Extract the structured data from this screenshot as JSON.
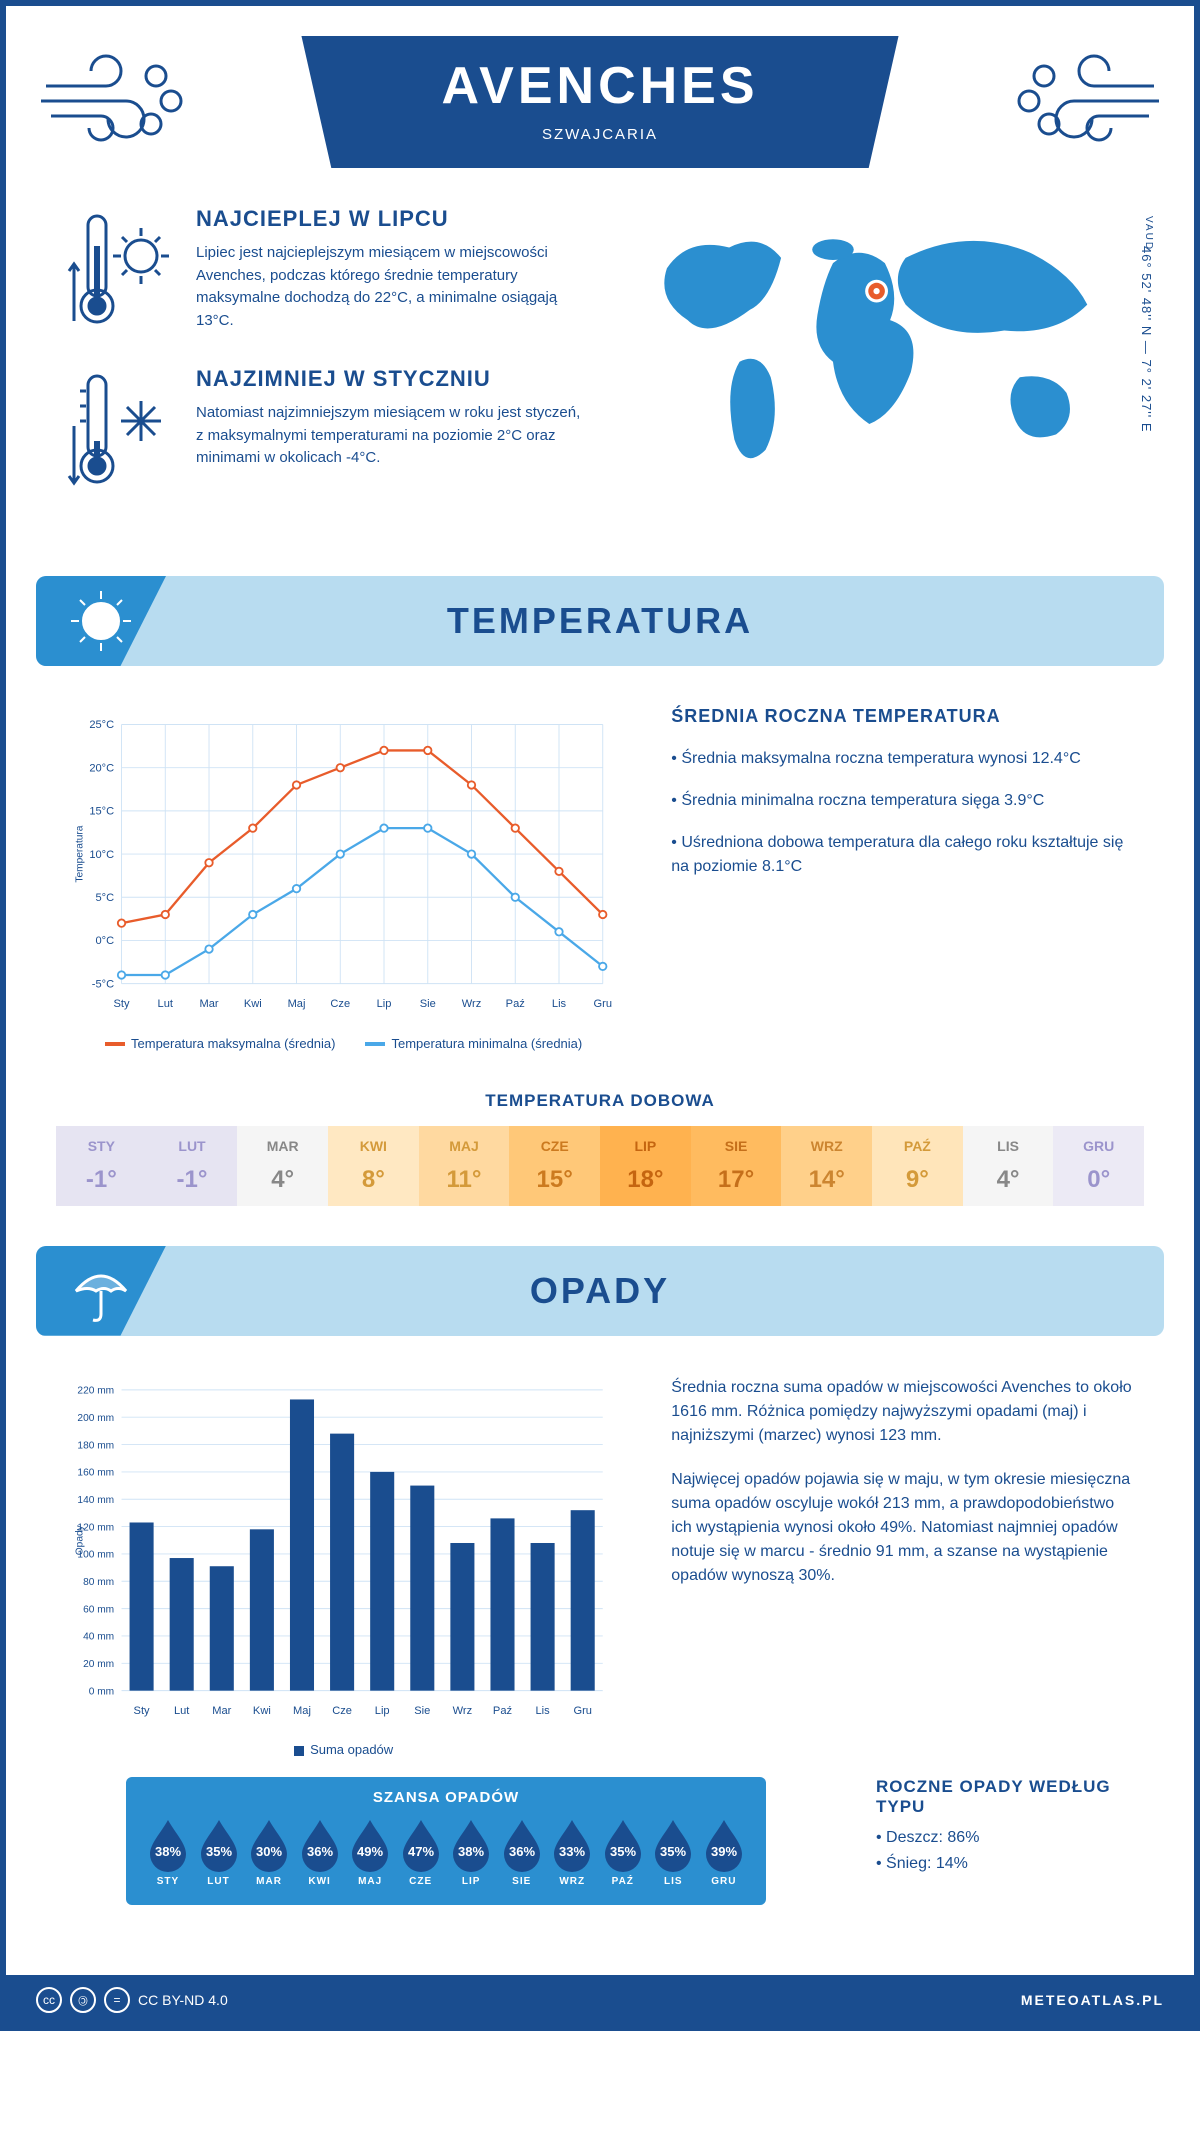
{
  "header": {
    "title": "AVENCHES",
    "subtitle": "SZWAJCARIA",
    "region": "VAUD",
    "coords": "46° 52' 48'' N — 7° 2' 27'' E"
  },
  "colors": {
    "primary": "#1a4d8f",
    "accent": "#2b8fd0",
    "light": "#b8dcf0",
    "max_line": "#e85c2b",
    "min_line": "#4aa8e8"
  },
  "warmest": {
    "title": "NAJCIEPLEJ W LIPCU",
    "text": "Lipiec jest najcieplejszym miesiącem w miejscowości Avenches, podczas którego średnie temperatury maksymalne dochodzą do 22°C, a minimalne osiągają 13°C."
  },
  "coldest": {
    "title": "NAJZIMNIEJ W STYCZNIU",
    "text": "Natomiast najzimniejszym miesiącem w roku jest styczeń, z maksymalnymi temperaturami na poziomie 2°C oraz minimami w okolicach -4°C."
  },
  "temp_section": {
    "title": "TEMPERATURA",
    "chart": {
      "type": "line",
      "months": [
        "Sty",
        "Lut",
        "Mar",
        "Kwi",
        "Maj",
        "Cze",
        "Lip",
        "Sie",
        "Wrz",
        "Paź",
        "Lis",
        "Gru"
      ],
      "max": [
        2,
        3,
        9,
        13,
        18,
        20,
        22,
        22,
        18,
        13,
        8,
        3
      ],
      "min": [
        -4,
        -4,
        -1,
        3,
        6,
        10,
        13,
        13,
        10,
        5,
        1,
        -3
      ],
      "ylim": [
        -5,
        25
      ],
      "ytick_step": 5,
      "yunit": "°C",
      "ylabel": "Temperatura",
      "max_color": "#e85c2b",
      "min_color": "#4aa8e8",
      "grid_color": "#cfe3f5",
      "legend_max": "Temperatura maksymalna (średnia)",
      "legend_min": "Temperatura minimalna (średnia)"
    },
    "side": {
      "title": "ŚREDNIA ROCZNA TEMPERATURA",
      "b1": "• Średnia maksymalna roczna temperatura wynosi 12.4°C",
      "b2": "• Średnia minimalna roczna temperatura sięga 3.9°C",
      "b3": "• Uśredniona dobowa temperatura dla całego roku kształtuje się na poziomie 8.1°C"
    },
    "daily": {
      "title": "TEMPERATURA DOBOWA",
      "months": [
        "STY",
        "LUT",
        "MAR",
        "KWI",
        "MAJ",
        "CZE",
        "LIP",
        "SIE",
        "WRZ",
        "PAŹ",
        "LIS",
        "GRU"
      ],
      "values": [
        "-1°",
        "-1°",
        "4°",
        "8°",
        "11°",
        "15°",
        "18°",
        "17°",
        "14°",
        "9°",
        "4°",
        "0°"
      ],
      "cell_colors": [
        "#e6e4f2",
        "#e6e4f2",
        "#f5f5f5",
        "#ffe8c2",
        "#ffd9a0",
        "#ffc878",
        "#ffb24f",
        "#ffbb5f",
        "#ffd08a",
        "#ffe5ba",
        "#f5f5f5",
        "#eceaf5"
      ],
      "text_colors": [
        "#9b94cc",
        "#9b94cc",
        "#888",
        "#d49a3a",
        "#d49a3a",
        "#cc7a1f",
        "#c56510",
        "#c56f1a",
        "#cc8530",
        "#d49a3a",
        "#888",
        "#9b94cc"
      ]
    }
  },
  "precip_section": {
    "title": "OPADY",
    "chart": {
      "type": "bar",
      "months": [
        "Sty",
        "Lut",
        "Mar",
        "Kwi",
        "Maj",
        "Cze",
        "Lip",
        "Sie",
        "Wrz",
        "Paź",
        "Lis",
        "Gru"
      ],
      "values": [
        123,
        97,
        91,
        118,
        213,
        188,
        160,
        150,
        108,
        126,
        108,
        132
      ],
      "ylim": [
        0,
        220
      ],
      "ytick_step": 20,
      "yunit": " mm",
      "ylabel": "Opady",
      "bar_color": "#1a4d8f",
      "grid_color": "#cfe3f5",
      "legend": "Suma opadów"
    },
    "side": {
      "p1": "Średnia roczna suma opadów w miejscowości Avenches to około 1616 mm. Różnica pomiędzy najwyższymi opadami (maj) i najniższymi (marzec) wynosi 123 mm.",
      "p2": "Najwięcej opadów pojawia się w maju, w tym okresie miesięczna suma opadów oscyluje wokół 213 mm, a prawdopodobieństwo ich wystąpienia wynosi około 49%. Natomiast najmniej opadów notuje się w marcu - średnio 91 mm, a szanse na wystąpienie opadów wynoszą 30%."
    },
    "chance": {
      "title": "SZANSA OPADÓW",
      "months": [
        "STY",
        "LUT",
        "MAR",
        "KWI",
        "MAJ",
        "CZE",
        "LIP",
        "SIE",
        "WRZ",
        "PAŹ",
        "LIS",
        "GRU"
      ],
      "values": [
        "38%",
        "35%",
        "30%",
        "36%",
        "49%",
        "47%",
        "38%",
        "36%",
        "33%",
        "35%",
        "35%",
        "39%"
      ]
    },
    "types": {
      "title": "ROCZNE OPADY WEDŁUG TYPU",
      "t1": "• Deszcz: 86%",
      "t2": "• Śnieg: 14%"
    }
  },
  "footer": {
    "license": "CC BY-ND 4.0",
    "site": "METEOATLAS.PL"
  }
}
